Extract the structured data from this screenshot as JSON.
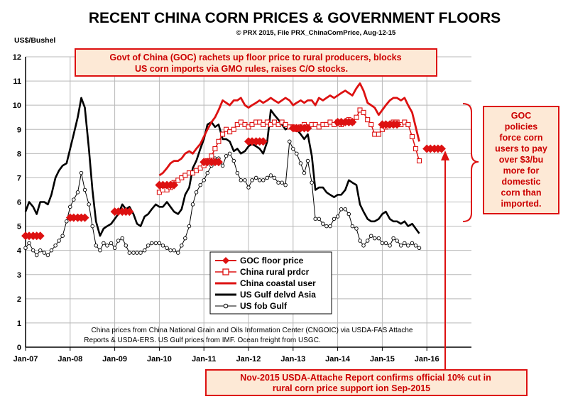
{
  "chart_data": {
    "type": "line",
    "title": "RECENT CHINA CORN PRICES & GOVERNMENT FLOORS",
    "subtitle": "© PRX 2015, File PRX_ChinaCornPrice, Aug-12-15",
    "ylabel": "US$/Bushel",
    "xlabel": "",
    "ylim": [
      0,
      12
    ],
    "yticks": [
      "0",
      "1",
      "2",
      "3",
      "4",
      "5",
      "6",
      "7",
      "8",
      "9",
      "10",
      "11",
      "12"
    ],
    "xlim": [
      2007.0,
      2017.0
    ],
    "xticks": [
      {
        "x": 2007,
        "label": "Jan-07"
      },
      {
        "x": 2008,
        "label": "Jan-08"
      },
      {
        "x": 2009,
        "label": "Jan-09"
      },
      {
        "x": 2010,
        "label": "Jan-10"
      },
      {
        "x": 2011,
        "label": "Jan-11"
      },
      {
        "x": 2012,
        "label": "Jan-12"
      },
      {
        "x": 2013,
        "label": "Jan-13"
      },
      {
        "x": 2014,
        "label": "Jan-14"
      },
      {
        "x": 2015,
        "label": "Jan-15"
      },
      {
        "x": 2016,
        "label": "Jan-16"
      }
    ],
    "grid": true,
    "legend": "center",
    "series": [
      {
        "name": "GOC floor price",
        "style": "floor",
        "color": "#dd1111",
        "segments": [
          {
            "y": 4.6,
            "x": [
              2007.0,
              2007.08,
              2007.17,
              2007.25,
              2007.33
            ]
          },
          {
            "y": 5.35,
            "x": [
              2008.0,
              2008.08,
              2008.17,
              2008.25,
              2008.33
            ]
          },
          {
            "y": 5.6,
            "x": [
              2009.0,
              2009.08,
              2009.17,
              2009.25,
              2009.33
            ]
          },
          {
            "y": 6.7,
            "x": [
              2010.0,
              2010.08,
              2010.17,
              2010.25,
              2010.33
            ]
          },
          {
            "y": 7.65,
            "x": [
              2011.0,
              2011.08,
              2011.17,
              2011.25,
              2011.33
            ]
          },
          {
            "y": 8.5,
            "x": [
              2012.0,
              2012.08,
              2012.17,
              2012.25,
              2012.33
            ]
          },
          {
            "y": 9.05,
            "x": [
              2013.0,
              2013.08,
              2013.17,
              2013.25,
              2013.33
            ]
          },
          {
            "y": 9.3,
            "x": [
              2014.0,
              2014.08,
              2014.17,
              2014.25,
              2014.33
            ]
          },
          {
            "y": 9.2,
            "x": [
              2015.0,
              2015.08,
              2015.17,
              2015.25,
              2015.33
            ]
          },
          {
            "y": 8.2,
            "x": [
              2016.0,
              2016.08,
              2016.17,
              2016.25,
              2016.33
            ]
          }
        ]
      },
      {
        "name": "China rural prdcr",
        "style": "square",
        "color": "#dd1111",
        "x": [
          2010.0,
          2010.08,
          2010.17,
          2010.25,
          2010.33,
          2010.42,
          2010.5,
          2010.58,
          2010.67,
          2010.75,
          2010.83,
          2010.92,
          2011.0,
          2011.08,
          2011.17,
          2011.25,
          2011.33,
          2011.42,
          2011.5,
          2011.58,
          2011.67,
          2011.75,
          2011.83,
          2011.92,
          2012.0,
          2012.08,
          2012.17,
          2012.25,
          2012.33,
          2012.42,
          2012.5,
          2012.58,
          2012.67,
          2012.75,
          2012.83,
          2012.92,
          2013.0,
          2013.08,
          2013.17,
          2013.25,
          2013.33,
          2013.42,
          2013.5,
          2013.58,
          2013.67,
          2013.75,
          2013.83,
          2013.92,
          2014.0,
          2014.08,
          2014.17,
          2014.25,
          2014.33,
          2014.42,
          2014.5,
          2014.58,
          2014.67,
          2014.75,
          2014.83,
          2014.92,
          2015.0,
          2015.08,
          2015.17,
          2015.25,
          2015.33,
          2015.42,
          2015.5,
          2015.58,
          2015.67,
          2015.75,
          2015.83
        ],
        "values": [
          6.4,
          6.5,
          6.5,
          6.6,
          6.8,
          6.9,
          7.0,
          7.1,
          7.2,
          7.2,
          7.3,
          7.4,
          7.5,
          7.7,
          7.9,
          8.2,
          8.5,
          8.8,
          9.0,
          8.9,
          9.0,
          9.2,
          9.3,
          9.2,
          9.1,
          9.2,
          9.3,
          9.3,
          9.2,
          9.3,
          9.2,
          9.3,
          9.2,
          9.3,
          9.2,
          9.1,
          9.1,
          9.0,
          9.1,
          9.2,
          9.1,
          9.2,
          9.2,
          9.1,
          9.2,
          9.2,
          9.3,
          9.2,
          9.3,
          9.2,
          9.3,
          9.4,
          9.3,
          9.5,
          9.8,
          9.7,
          9.4,
          9.2,
          8.8,
          8.8,
          9.0,
          9.1,
          9.2,
          9.3,
          9.3,
          9.2,
          9.3,
          9.2,
          8.7,
          8.2,
          7.7
        ]
      },
      {
        "name": "China coastal user",
        "style": "thick",
        "color": "#dd1111",
        "x": [
          2010.0,
          2010.08,
          2010.17,
          2010.25,
          2010.33,
          2010.42,
          2010.5,
          2010.58,
          2010.67,
          2010.75,
          2010.83,
          2010.92,
          2011.0,
          2011.08,
          2011.17,
          2011.25,
          2011.33,
          2011.42,
          2011.5,
          2011.58,
          2011.67,
          2011.75,
          2011.83,
          2011.92,
          2012.0,
          2012.08,
          2012.17,
          2012.25,
          2012.33,
          2012.42,
          2012.5,
          2012.58,
          2012.67,
          2012.75,
          2012.83,
          2012.92,
          2013.0,
          2013.08,
          2013.17,
          2013.25,
          2013.33,
          2013.42,
          2013.5,
          2013.58,
          2013.67,
          2013.75,
          2013.83,
          2013.92,
          2014.0,
          2014.08,
          2014.17,
          2014.25,
          2014.33,
          2014.42,
          2014.5,
          2014.58,
          2014.67,
          2014.75,
          2014.83,
          2014.92,
          2015.0,
          2015.08,
          2015.17,
          2015.25,
          2015.33,
          2015.42,
          2015.5,
          2015.58,
          2015.67,
          2015.75,
          2015.83
        ],
        "values": [
          7.1,
          7.2,
          7.4,
          7.6,
          7.7,
          7.7,
          7.8,
          8.0,
          8.1,
          8.0,
          8.2,
          8.4,
          8.7,
          9.0,
          9.3,
          9.5,
          9.8,
          10.2,
          10.1,
          10.0,
          10.2,
          10.2,
          10.3,
          10.0,
          9.9,
          10.0,
          10.1,
          10.2,
          10.1,
          10.2,
          10.3,
          10.2,
          10.1,
          10.2,
          10.3,
          10.2,
          10.0,
          10.1,
          10.2,
          10.1,
          10.2,
          10.2,
          10.0,
          10.3,
          10.2,
          10.3,
          10.4,
          10.3,
          10.4,
          10.5,
          10.6,
          10.5,
          10.4,
          10.7,
          10.9,
          10.6,
          10.1,
          10.0,
          9.9,
          9.6,
          9.8,
          10.0,
          10.2,
          10.3,
          10.3,
          10.2,
          10.3,
          10.0,
          9.7,
          9.1,
          8.5
        ]
      },
      {
        "name": "US Gulf delvd Asia",
        "style": "black",
        "color": "#000000",
        "x": [
          2007.0,
          2007.08,
          2007.17,
          2007.25,
          2007.33,
          2007.42,
          2007.5,
          2007.58,
          2007.67,
          2007.75,
          2007.83,
          2007.92,
          2008.0,
          2008.08,
          2008.17,
          2008.25,
          2008.33,
          2008.42,
          2008.5,
          2008.58,
          2008.67,
          2008.75,
          2008.83,
          2008.92,
          2009.0,
          2009.08,
          2009.17,
          2009.25,
          2009.33,
          2009.42,
          2009.5,
          2009.58,
          2009.67,
          2009.75,
          2009.83,
          2009.92,
          2010.0,
          2010.08,
          2010.17,
          2010.25,
          2010.33,
          2010.42,
          2010.5,
          2010.58,
          2010.67,
          2010.75,
          2010.83,
          2010.92,
          2011.0,
          2011.08,
          2011.17,
          2011.25,
          2011.33,
          2011.42,
          2011.5,
          2011.58,
          2011.67,
          2011.75,
          2011.83,
          2011.92,
          2012.0,
          2012.08,
          2012.17,
          2012.25,
          2012.33,
          2012.42,
          2012.5,
          2012.58,
          2012.67,
          2012.75,
          2012.83,
          2012.92,
          2013.0,
          2013.08,
          2013.17,
          2013.25,
          2013.33,
          2013.42,
          2013.5,
          2013.58,
          2013.67,
          2013.75,
          2013.83,
          2013.92,
          2014.0,
          2014.08,
          2014.17,
          2014.25,
          2014.33,
          2014.42,
          2014.5,
          2014.58,
          2014.67,
          2014.75,
          2014.83,
          2014.92,
          2015.0,
          2015.08,
          2015.17,
          2015.25,
          2015.33,
          2015.42,
          2015.5,
          2015.58,
          2015.67,
          2015.75,
          2015.83
        ],
        "values": [
          5.6,
          6.0,
          5.8,
          5.5,
          6.0,
          6.0,
          5.9,
          6.3,
          7.0,
          7.3,
          7.5,
          7.6,
          8.2,
          8.8,
          9.5,
          10.3,
          9.9,
          8.2,
          6.5,
          5.2,
          4.6,
          4.9,
          5.0,
          5.1,
          5.3,
          5.5,
          5.9,
          5.7,
          5.8,
          5.5,
          5.1,
          5.0,
          5.4,
          5.5,
          5.7,
          5.9,
          5.8,
          5.8,
          6.0,
          5.8,
          5.6,
          5.5,
          5.7,
          6.3,
          6.6,
          7.4,
          7.7,
          8.2,
          8.6,
          9.2,
          9.3,
          9.1,
          9.2,
          8.6,
          8.6,
          8.5,
          8.1,
          8.2,
          8.0,
          8.1,
          8.3,
          8.4,
          8.3,
          8.2,
          8.0,
          8.5,
          9.8,
          9.6,
          9.4,
          9.2,
          9.0,
          9.1,
          9.0,
          9.0,
          8.8,
          8.6,
          8.8,
          7.9,
          6.5,
          6.6,
          6.6,
          6.4,
          6.3,
          6.2,
          6.3,
          6.3,
          6.5,
          6.9,
          6.8,
          6.7,
          5.9,
          5.6,
          5.3,
          5.2,
          5.2,
          5.3,
          5.5,
          5.6,
          5.3,
          5.2,
          5.2,
          5.1,
          5.2,
          5.0,
          5.1,
          4.9,
          4.7
        ]
      },
      {
        "name": "US fob Gulf",
        "style": "circle",
        "color": "#000000",
        "x": [
          2007.0,
          2007.08,
          2007.17,
          2007.25,
          2007.33,
          2007.42,
          2007.5,
          2007.58,
          2007.67,
          2007.75,
          2007.83,
          2007.92,
          2008.0,
          2008.08,
          2008.17,
          2008.25,
          2008.33,
          2008.42,
          2008.5,
          2008.58,
          2008.67,
          2008.75,
          2008.83,
          2008.92,
          2009.0,
          2009.08,
          2009.17,
          2009.25,
          2009.33,
          2009.42,
          2009.5,
          2009.58,
          2009.67,
          2009.75,
          2009.83,
          2009.92,
          2010.0,
          2010.08,
          2010.17,
          2010.25,
          2010.33,
          2010.42,
          2010.5,
          2010.58,
          2010.67,
          2010.75,
          2010.83,
          2010.92,
          2011.0,
          2011.08,
          2011.17,
          2011.25,
          2011.33,
          2011.42,
          2011.5,
          2011.58,
          2011.67,
          2011.75,
          2011.83,
          2011.92,
          2012.0,
          2012.08,
          2012.17,
          2012.25,
          2012.33,
          2012.42,
          2012.5,
          2012.58,
          2012.67,
          2012.75,
          2012.83,
          2012.92,
          2013.0,
          2013.08,
          2013.17,
          2013.25,
          2013.33,
          2013.42,
          2013.5,
          2013.58,
          2013.67,
          2013.75,
          2013.83,
          2013.92,
          2014.0,
          2014.08,
          2014.17,
          2014.25,
          2014.33,
          2014.42,
          2014.5,
          2014.58,
          2014.67,
          2014.75,
          2014.83,
          2014.92,
          2015.0,
          2015.08,
          2015.17,
          2015.25,
          2015.33,
          2015.42,
          2015.5,
          2015.58,
          2015.67,
          2015.75,
          2015.83
        ],
        "values": [
          4.1,
          4.3,
          4.0,
          3.8,
          4.0,
          3.9,
          3.8,
          4.0,
          4.2,
          4.4,
          4.6,
          5.2,
          5.8,
          6.1,
          6.4,
          7.2,
          6.5,
          5.9,
          5.0,
          4.2,
          4.0,
          4.3,
          4.2,
          4.3,
          4.1,
          4.4,
          4.5,
          4.2,
          3.9,
          3.9,
          3.9,
          3.9,
          4.0,
          4.2,
          4.3,
          4.3,
          4.3,
          4.2,
          4.1,
          4.0,
          4.0,
          3.9,
          4.2,
          4.5,
          5.0,
          5.9,
          6.4,
          6.7,
          6.9,
          7.2,
          7.5,
          7.8,
          7.8,
          7.5,
          7.9,
          8.0,
          7.7,
          7.2,
          6.9,
          6.9,
          6.6,
          6.9,
          7.0,
          6.9,
          6.9,
          7.0,
          7.1,
          7.0,
          6.8,
          6.8,
          6.7,
          8.5,
          8.2,
          8.0,
          7.6,
          7.2,
          7.7,
          6.8,
          5.3,
          5.3,
          5.1,
          5.0,
          5.0,
          5.3,
          5.4,
          5.7,
          5.7,
          5.5,
          5.0,
          4.9,
          4.4,
          4.2,
          4.4,
          4.6,
          4.5,
          4.5,
          4.3,
          4.3,
          4.2,
          4.5,
          4.4,
          4.2,
          4.3,
          4.2,
          4.3,
          4.2,
          4.1
        ]
      }
    ],
    "annotations": {
      "top_box": [
        "Govt of China (GOC) rachets up floor price to rural producers, blocks",
        "US corn imports via GMO rules, raises C/O stocks."
      ],
      "side_box": [
        "GOC",
        "policies",
        "force corn",
        "users to pay",
        "over $3/bu",
        "more for",
        "domestic",
        "corn than",
        "imported."
      ],
      "bottom_box": [
        "Nov-2015 USDA-Attache Report confirms official 10% cut in",
        "rural corn price support ion Sep-2015"
      ],
      "source_note": [
        "China prices from China National Grain and Oils Information Center (CNGOIC) via USDA-FAS Attache",
        "Reports & USDA-ERS. US Gulf prices from IMF. Ocean freight from USGC."
      ]
    },
    "colors": {
      "red": "#dd1111",
      "black": "#000000",
      "grid": "#b8b8b8",
      "box_bg": "#fde9d6"
    }
  }
}
